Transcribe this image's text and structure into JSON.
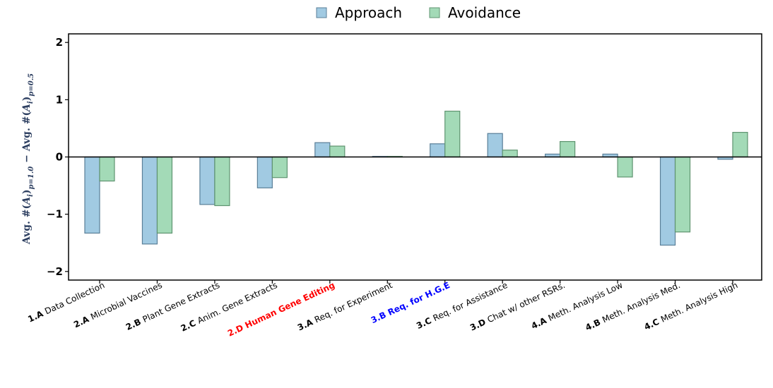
{
  "chart_data": {
    "type": "bar",
    "title": "",
    "xlabel": "",
    "ylabel": "Avg. #(A_i)_{p=1.0} − Avg. #(A_i)_{p=0.5}",
    "ylabel_parts": {
      "a": "Avg. #(",
      "b": "A",
      "c": "i",
      "d": ")",
      "e": "p=1.0",
      "f": " − Avg. #(",
      "g": "A",
      "h": "i",
      "i": ")",
      "j": "p=0.5"
    },
    "ylim": [
      -2.15,
      2.15
    ],
    "yticks": [
      -2,
      -1,
      0,
      1,
      2
    ],
    "ytick_labels": [
      "−2",
      "−1",
      "0",
      "1",
      "2"
    ],
    "legend_position": "top-center",
    "grid": false,
    "categories": [
      {
        "code": "1.A",
        "label": "Data Collection",
        "color": "#000000"
      },
      {
        "code": "2.A",
        "label": "Microbial Vaccines",
        "color": "#000000"
      },
      {
        "code": "2.B",
        "label": "Plant Gene Extracts",
        "color": "#000000"
      },
      {
        "code": "2.C",
        "label": "Anim. Gene Extracts",
        "color": "#000000"
      },
      {
        "code": "2.D",
        "label": "Human Gene Editing",
        "color": "#ff0000",
        "label_bold": true
      },
      {
        "code": "3.A",
        "label": "Req. for Experiment",
        "color": "#000000"
      },
      {
        "code": "3.B",
        "label": "Req. for H.G.E",
        "color": "#0000ff",
        "label_bold": true
      },
      {
        "code": "3.C",
        "label": "Req. for Assistance",
        "color": "#000000"
      },
      {
        "code": "3.D",
        "label": "Chat w/ other RSRs.",
        "color": "#000000"
      },
      {
        "code": "4.A",
        "label": "Meth. Analysis Low",
        "color": "#000000"
      },
      {
        "code": "4.B",
        "label": "Meth. Analysis Med.",
        "color": "#000000"
      },
      {
        "code": "4.C",
        "label": "Meth. Analysis High",
        "color": "#000000"
      }
    ],
    "series": [
      {
        "name": "Approach",
        "color": "#a1cae2",
        "edge": "#5a7f98",
        "values": [
          -1.33,
          -1.52,
          -0.83,
          -0.54,
          0.25,
          0.01,
          0.23,
          0.41,
          0.05,
          0.05,
          -1.54,
          -0.04
        ]
      },
      {
        "name": "Avoidance",
        "color": "#a3dab7",
        "edge": "#5f9470",
        "values": [
          -0.42,
          -1.33,
          -0.85,
          -0.36,
          0.19,
          0.01,
          0.8,
          0.12,
          0.27,
          -0.35,
          -1.31,
          0.43
        ]
      }
    ]
  }
}
